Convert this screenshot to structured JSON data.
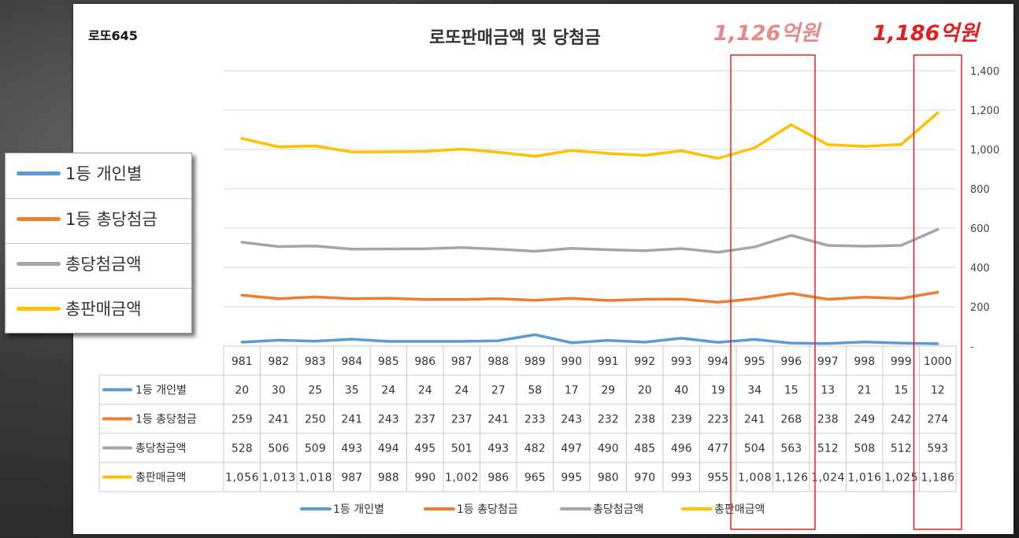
{
  "header": {
    "brand": "로또645",
    "title": "로또판매금액 및 당첨금",
    "callout_995_996": "1,126억원",
    "callout_1000": "1,186억원"
  },
  "colors": {
    "series_blue": "#5b9bd5",
    "series_orange": "#ed7d31",
    "series_gray": "#a5a5a5",
    "series_yellow": "#ffc000",
    "callout_faded": "#e58a8a",
    "callout_red": "#e02020",
    "highlight_box": "#e02020"
  },
  "legend_box": {
    "items": [
      "1등 개인별",
      "1등 총당첨금",
      "총당첨금액",
      "총판매금액"
    ]
  },
  "chart_data": {
    "type": "line",
    "title": "로또판매금액 및 당첨금",
    "categories": [
      "981",
      "982",
      "983",
      "984",
      "985",
      "986",
      "987",
      "988",
      "989",
      "990",
      "991",
      "992",
      "993",
      "994",
      "995",
      "996",
      "997",
      "998",
      "999",
      "1000"
    ],
    "ylim": [
      0,
      1400
    ],
    "yticks": [
      "-",
      "200",
      "400",
      "600",
      "800",
      "1,000",
      "1,200",
      "1,400"
    ],
    "ytick_values": [
      0,
      200,
      400,
      600,
      800,
      1000,
      1200,
      1400
    ],
    "grid": true,
    "legend_position": "bottom",
    "highlight_categories": [
      [
        "995",
        "996"
      ],
      [
        "1000"
      ]
    ],
    "series": [
      {
        "name": "1등 개인별",
        "values": [
          20,
          30,
          25,
          35,
          24,
          24,
          24,
          27,
          58,
          17,
          29,
          20,
          40,
          19,
          34,
          15,
          13,
          21,
          15,
          12
        ],
        "labels": [
          "20",
          "30",
          "25",
          "35",
          "24",
          "24",
          "24",
          "27",
          "58",
          "17",
          "29",
          "20",
          "40",
          "19",
          "34",
          "15",
          "13",
          "21",
          "15",
          "12"
        ]
      },
      {
        "name": "1등 총당첨금",
        "values": [
          259,
          241,
          250,
          241,
          243,
          237,
          237,
          241,
          233,
          243,
          232,
          238,
          239,
          223,
          241,
          268,
          238,
          249,
          242,
          274
        ],
        "labels": [
          "259",
          "241",
          "250",
          "241",
          "243",
          "237",
          "237",
          "241",
          "233",
          "243",
          "232",
          "238",
          "239",
          "223",
          "241",
          "268",
          "238",
          "249",
          "242",
          "274"
        ]
      },
      {
        "name": "총당첨금액",
        "values": [
          528,
          506,
          509,
          493,
          494,
          495,
          501,
          493,
          482,
          497,
          490,
          485,
          496,
          477,
          504,
          563,
          512,
          508,
          512,
          593
        ],
        "labels": [
          "528",
          "506",
          "509",
          "493",
          "494",
          "495",
          "501",
          "493",
          "482",
          "497",
          "490",
          "485",
          "496",
          "477",
          "504",
          "563",
          "512",
          "508",
          "512",
          "593"
        ]
      },
      {
        "name": "총판매금액",
        "values": [
          1056,
          1013,
          1018,
          987,
          988,
          990,
          1002,
          986,
          965,
          995,
          980,
          970,
          993,
          955,
          1008,
          1126,
          1024,
          1016,
          1025,
          1186
        ],
        "labels": [
          "1,056",
          "1,013",
          "1,018",
          "987",
          "988",
          "990",
          "1,002",
          "986",
          "965",
          "995",
          "980",
          "970",
          "993",
          "955",
          "1,008",
          "1,126",
          "1,024",
          "1,016",
          "1,025",
          "1,186"
        ]
      }
    ]
  }
}
